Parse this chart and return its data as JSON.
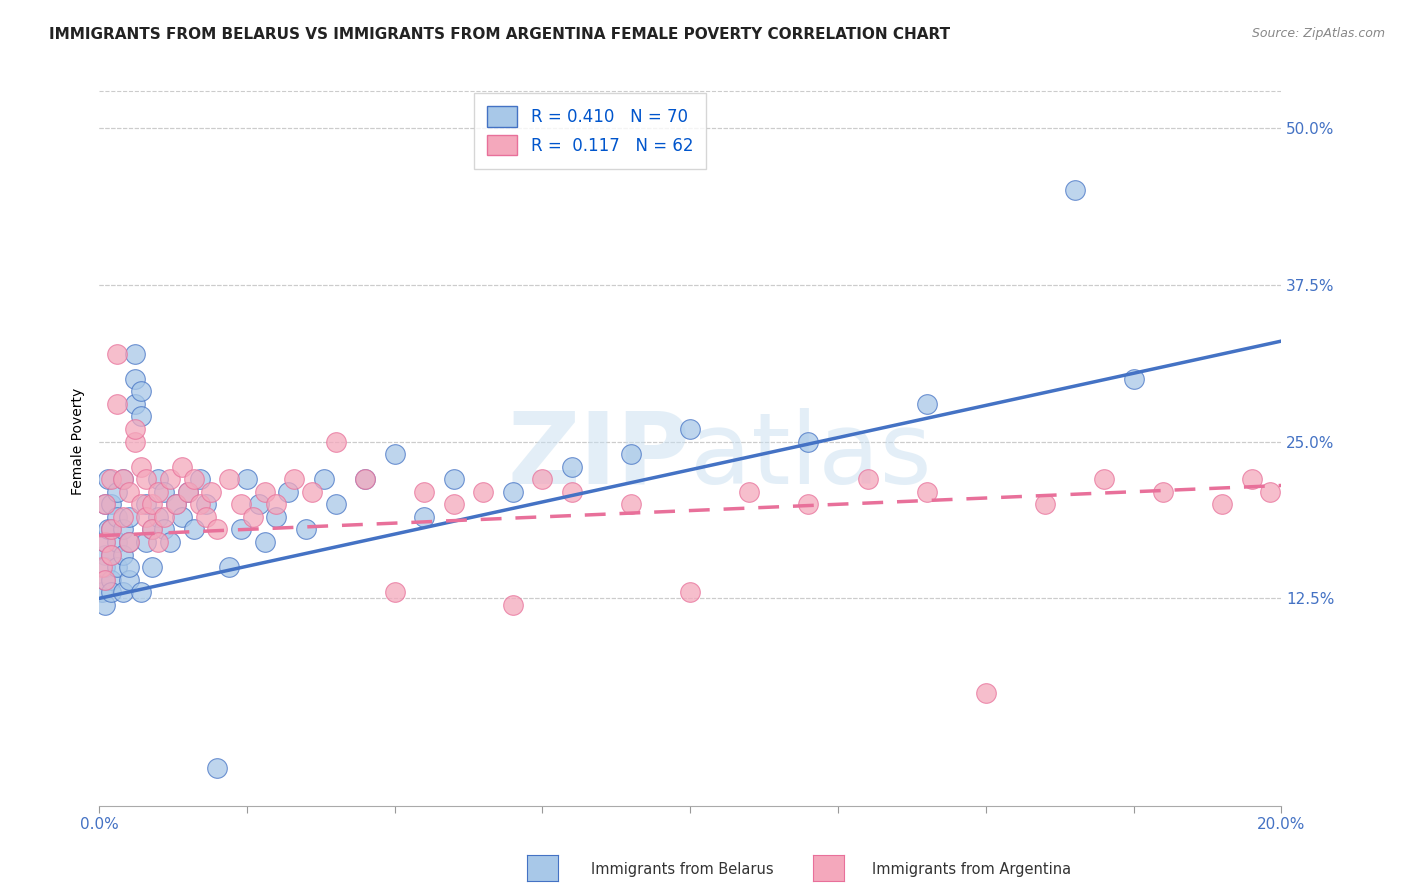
{
  "title": "IMMIGRANTS FROM BELARUS VS IMMIGRANTS FROM ARGENTINA FEMALE POVERTY CORRELATION CHART",
  "source": "Source: ZipAtlas.com",
  "ylabel": "Female Poverty",
  "xlim": [
    0,
    0.2
  ],
  "ylim": [
    -0.04,
    0.54
  ],
  "yticks": [
    0.125,
    0.25,
    0.375,
    0.5
  ],
  "ytick_labels": [
    "12.5%",
    "25.0%",
    "37.5%",
    "50.0%"
  ],
  "xticks": [
    0.0,
    0.025,
    0.05,
    0.075,
    0.1,
    0.125,
    0.15,
    0.175,
    0.2
  ],
  "xtick_labels_show": [
    "0.0%",
    "20.0%"
  ],
  "belarus_R": 0.41,
  "belarus_N": 70,
  "argentina_R": 0.117,
  "argentina_N": 62,
  "belarus_color": "#a8c8e8",
  "argentina_color": "#f4a8bc",
  "blue_line_color": "#4472c4",
  "pink_line_color": "#e8709a",
  "watermark_color": "#c8dff0",
  "background_color": "#ffffff",
  "grid_color": "#cccccc",
  "title_fontsize": 11,
  "axis_label_fontsize": 10,
  "tick_fontsize": 11,
  "legend_fontsize": 12,
  "belarus_x": [
    0.0005,
    0.001,
    0.001,
    0.001,
    0.001,
    0.001,
    0.001,
    0.0015,
    0.0015,
    0.002,
    0.002,
    0.002,
    0.002,
    0.002,
    0.003,
    0.003,
    0.003,
    0.003,
    0.004,
    0.004,
    0.004,
    0.004,
    0.005,
    0.005,
    0.005,
    0.005,
    0.006,
    0.006,
    0.006,
    0.007,
    0.007,
    0.007,
    0.008,
    0.008,
    0.009,
    0.009,
    0.01,
    0.01,
    0.011,
    0.011,
    0.012,
    0.013,
    0.014,
    0.015,
    0.016,
    0.017,
    0.018,
    0.02,
    0.022,
    0.024,
    0.025,
    0.027,
    0.028,
    0.03,
    0.032,
    0.035,
    0.038,
    0.04,
    0.045,
    0.05,
    0.055,
    0.06,
    0.07,
    0.08,
    0.09,
    0.1,
    0.12,
    0.14,
    0.165,
    0.175
  ],
  "belarus_y": [
    0.13,
    0.14,
    0.12,
    0.16,
    0.15,
    0.17,
    0.2,
    0.18,
    0.22,
    0.14,
    0.18,
    0.2,
    0.16,
    0.13,
    0.15,
    0.19,
    0.17,
    0.21,
    0.16,
    0.13,
    0.18,
    0.22,
    0.14,
    0.17,
    0.19,
    0.15,
    0.3,
    0.32,
    0.28,
    0.29,
    0.27,
    0.13,
    0.2,
    0.17,
    0.18,
    0.15,
    0.19,
    0.22,
    0.21,
    0.18,
    0.17,
    0.2,
    0.19,
    0.21,
    0.18,
    0.22,
    0.2,
    -0.01,
    0.15,
    0.18,
    0.22,
    0.2,
    0.17,
    0.19,
    0.21,
    0.18,
    0.22,
    0.2,
    0.22,
    0.24,
    0.19,
    0.22,
    0.21,
    0.23,
    0.24,
    0.26,
    0.25,
    0.28,
    0.45,
    0.3
  ],
  "argentina_x": [
    0.0005,
    0.001,
    0.001,
    0.001,
    0.002,
    0.002,
    0.002,
    0.003,
    0.003,
    0.004,
    0.004,
    0.005,
    0.005,
    0.006,
    0.006,
    0.007,
    0.007,
    0.008,
    0.008,
    0.009,
    0.009,
    0.01,
    0.01,
    0.011,
    0.012,
    0.013,
    0.014,
    0.015,
    0.016,
    0.017,
    0.018,
    0.019,
    0.02,
    0.022,
    0.024,
    0.026,
    0.028,
    0.03,
    0.033,
    0.036,
    0.04,
    0.045,
    0.05,
    0.055,
    0.06,
    0.065,
    0.07,
    0.075,
    0.08,
    0.09,
    0.1,
    0.11,
    0.12,
    0.13,
    0.14,
    0.15,
    0.16,
    0.17,
    0.18,
    0.19,
    0.195,
    0.198
  ],
  "argentina_y": [
    0.15,
    0.14,
    0.17,
    0.2,
    0.18,
    0.22,
    0.16,
    0.28,
    0.32,
    0.22,
    0.19,
    0.17,
    0.21,
    0.25,
    0.26,
    0.2,
    0.23,
    0.19,
    0.22,
    0.18,
    0.2,
    0.17,
    0.21,
    0.19,
    0.22,
    0.2,
    0.23,
    0.21,
    0.22,
    0.2,
    0.19,
    0.21,
    0.18,
    0.22,
    0.2,
    0.19,
    0.21,
    0.2,
    0.22,
    0.21,
    0.25,
    0.22,
    0.13,
    0.21,
    0.2,
    0.21,
    0.12,
    0.22,
    0.21,
    0.2,
    0.13,
    0.21,
    0.2,
    0.22,
    0.21,
    0.05,
    0.2,
    0.22,
    0.21,
    0.2,
    0.22,
    0.21
  ],
  "blue_line_x0": 0.0,
  "blue_line_y0": 0.125,
  "blue_line_x1": 0.2,
  "blue_line_y1": 0.33,
  "pink_line_x0": 0.0,
  "pink_line_y0": 0.175,
  "pink_line_x1": 0.2,
  "pink_line_y1": 0.215
}
